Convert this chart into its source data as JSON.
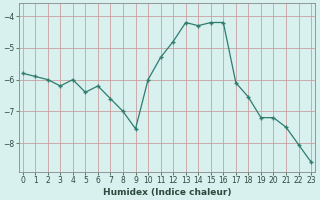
{
  "x": [
    0,
    1,
    2,
    3,
    4,
    5,
    6,
    7,
    8,
    9,
    10,
    11,
    12,
    13,
    14,
    15,
    16,
    17,
    18,
    19,
    20,
    21,
    22,
    23
  ],
  "y": [
    -5.8,
    -5.9,
    -6.0,
    -6.2,
    -6.0,
    -6.4,
    -6.2,
    -6.6,
    -7.0,
    -7.55,
    -6.0,
    -5.3,
    -4.8,
    -4.2,
    -4.3,
    -4.2,
    -4.2,
    -6.1,
    -6.55,
    -7.2,
    -7.2,
    -7.5,
    -8.05,
    -8.6
  ],
  "xlabel": "Humidex (Indice chaleur)",
  "ylim": [
    -8.9,
    -3.6
  ],
  "xlim": [
    -0.3,
    23.3
  ],
  "yticks": [
    -8,
    -7,
    -6,
    -5,
    -4
  ],
  "xticks": [
    0,
    1,
    2,
    3,
    4,
    5,
    6,
    7,
    8,
    9,
    10,
    11,
    12,
    13,
    14,
    15,
    16,
    17,
    18,
    19,
    20,
    21,
    22,
    23
  ],
  "line_color": "#2e7d6e",
  "marker": "+",
  "background_color": "#d8f0ee",
  "grid_color": "#c8a0a0",
  "spine_color": "#888888"
}
